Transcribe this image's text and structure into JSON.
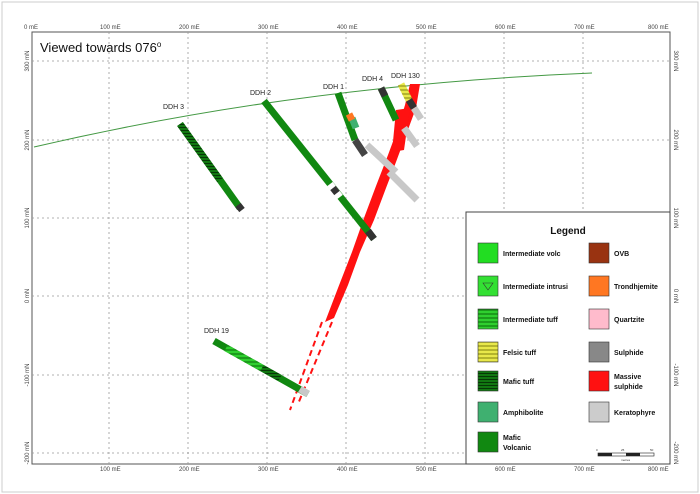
{
  "view_title": "Viewed towards 076",
  "view_degree": "o",
  "x_ticks": [
    "100 mE",
    "200 mE",
    "300 mE",
    "400 mE",
    "500 mE",
    "600 mE",
    "700 mE",
    "800 mE"
  ],
  "corner_tick": "0 mE",
  "y_ticks": [
    "300 mN",
    "200 mN",
    "100 mN",
    "0 mN",
    "-100 mN",
    "-200 mN"
  ],
  "holes": {
    "ddh3": "DDH 3",
    "ddh2": "DDH 2",
    "ddh1": "DDH 1",
    "ddh4": "DDH 4",
    "ddh130": "DDH 130",
    "ddh19": "DDH 19"
  },
  "legend": {
    "title": "Legend",
    "left": [
      {
        "label": "Intermediate volc",
        "color": "#22dd22"
      },
      {
        "label": "Intermediate intrusi",
        "color": "#33e033"
      },
      {
        "label": "Intermediate tuff",
        "color": "#2fcf2f"
      },
      {
        "label": "Felsic tuff",
        "color": "#e8e84a"
      },
      {
        "label": "Mafic tuff",
        "color": "#117711"
      },
      {
        "label": "Amphibolite",
        "color": "#3fb070"
      },
      {
        "label": "Mafic",
        "label2": "Volcanic",
        "color": "#118811"
      }
    ],
    "right": [
      {
        "label": "OVB",
        "color": "#993311"
      },
      {
        "label": "Trondhjemite",
        "color": "#ff7722"
      },
      {
        "label": "Quartzite",
        "color": "#ffbbcc"
      },
      {
        "label": "Sulphide",
        "color": "#888888"
      },
      {
        "label": "Massive",
        "label2": "sulphide",
        "color": "#ff1111"
      },
      {
        "label": "Keratophyre",
        "color": "#cccccc"
      }
    ]
  },
  "scale_bar": [
    "0",
    "25",
    "50"
  ],
  "scale_unit": "metres",
  "colors": {
    "topography": "#449944",
    "massive_sulphide": "#ff1111",
    "mafic_volcanic": "#118811",
    "keratophyre": "#c8c8c8",
    "grid": "#999999"
  }
}
